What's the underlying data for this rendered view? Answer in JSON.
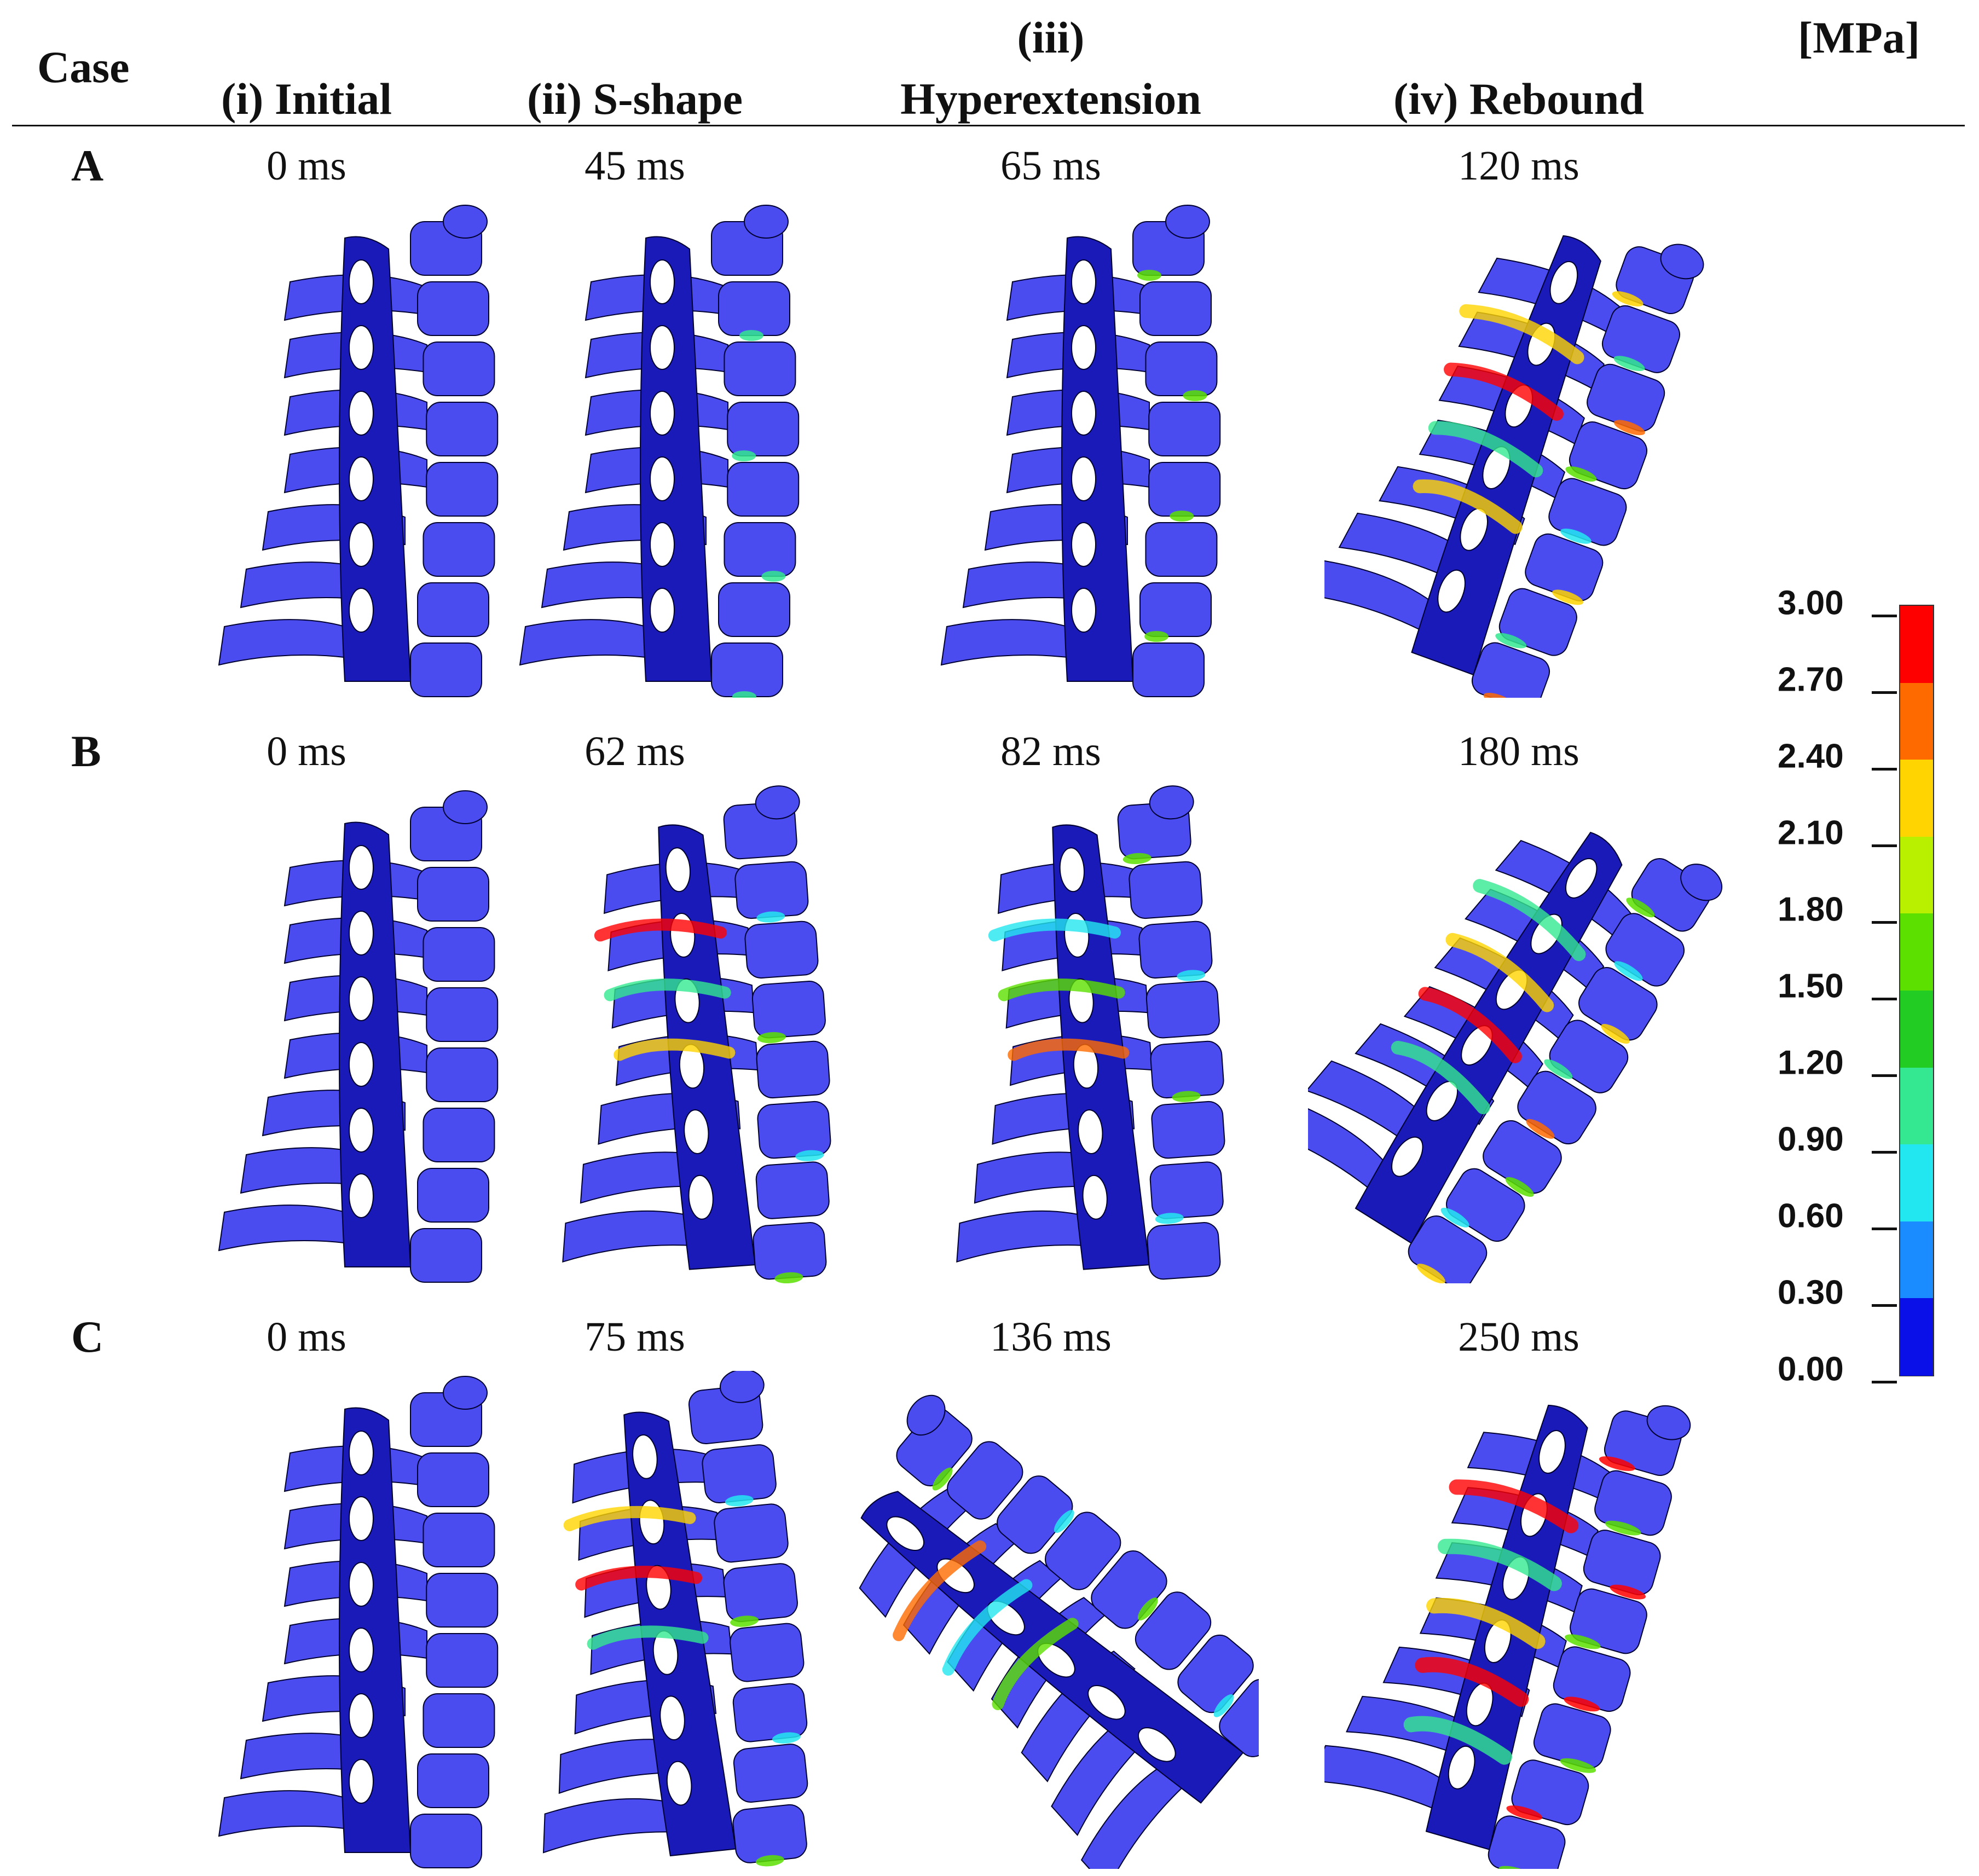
{
  "header": {
    "case_label": "Case",
    "col_i": "(i) Initial",
    "col_ii": "(ii) S-shape",
    "col_iii_top": "(iii)",
    "col_iii_bottom": "Hyperextension",
    "col_iv": "(iv) Rebound",
    "unit": "[MPa]"
  },
  "rows": [
    {
      "case": "A",
      "times": [
        "0 ms",
        "45 ms",
        "65 ms",
        "120 ms"
      ]
    },
    {
      "case": "B",
      "times": [
        "0 ms",
        "62 ms",
        "82 ms",
        "180 ms"
      ]
    },
    {
      "case": "C",
      "times": [
        "0 ms",
        "75 ms",
        "136 ms",
        "250 ms"
      ]
    }
  ],
  "legend": {
    "ticks": [
      "3.00",
      "2.70",
      "2.40",
      "2.10",
      "1.80",
      "1.50",
      "1.20",
      "0.90",
      "0.60",
      "0.30",
      "0.00"
    ],
    "colors": [
      "#ff0000",
      "#ff6a00",
      "#ffd400",
      "#b8f000",
      "#5be000",
      "#22cc22",
      "#33e890",
      "#22e6f0",
      "#1a8cff",
      "#0a10e8"
    ]
  },
  "colors": {
    "bone": "#4a4cf0",
    "dark_bone": "#1a1ab8",
    "outline": "#000030"
  }
}
